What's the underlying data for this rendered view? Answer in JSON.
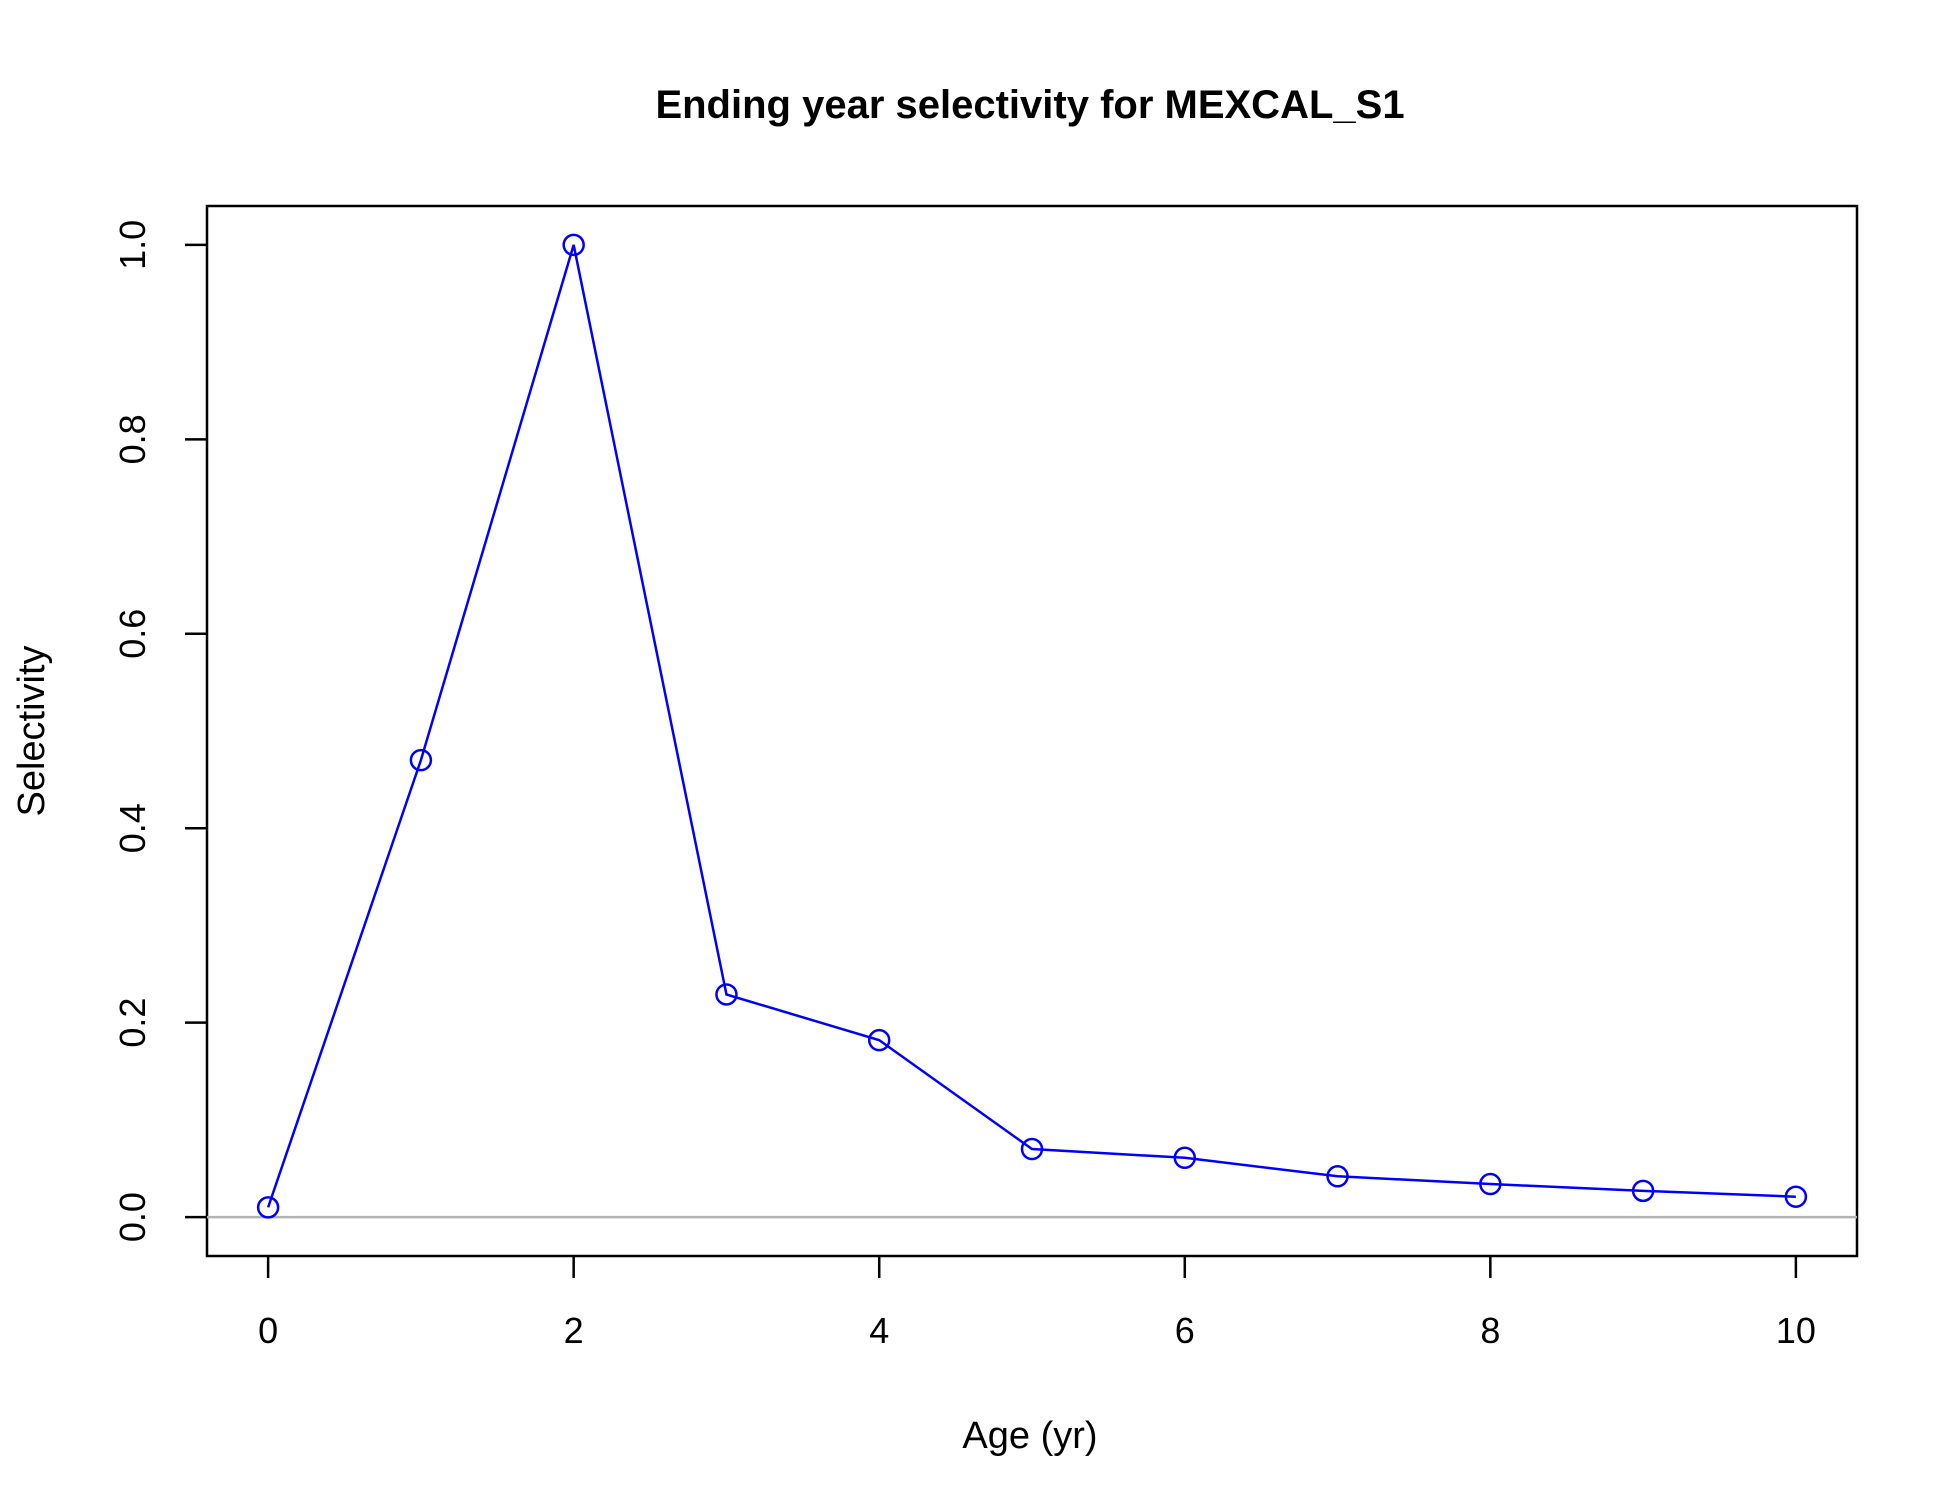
{
  "chart_data": {
    "type": "line",
    "title": "Ending year selectivity for MEXCAL_S1",
    "xlabel": "Age (yr)",
    "ylabel": "Selectivity",
    "xlim": [
      -0.4,
      10.4
    ],
    "ylim": [
      -0.04,
      1.04
    ],
    "x_ticks": [
      "0",
      "2",
      "4",
      "6",
      "8",
      "10"
    ],
    "y_ticks": [
      "0.0",
      "0.2",
      "0.4",
      "0.6",
      "0.8",
      "1.0"
    ],
    "reference_line_y": 0,
    "grid": false,
    "series": [
      {
        "color": "#0000ff",
        "marker": "open-circle",
        "x": [
          0,
          1,
          2,
          3,
          4,
          5,
          6,
          7,
          8,
          9,
          10
        ],
        "y": [
          0.01,
          0.47,
          1.0,
          0.229,
          0.182,
          0.07,
          0.061,
          0.042,
          0.034,
          0.027,
          0.021
        ]
      }
    ],
    "colors": {
      "series": "#0000ff",
      "reference_line": "#b3b3b3",
      "axes": "#000000"
    }
  }
}
